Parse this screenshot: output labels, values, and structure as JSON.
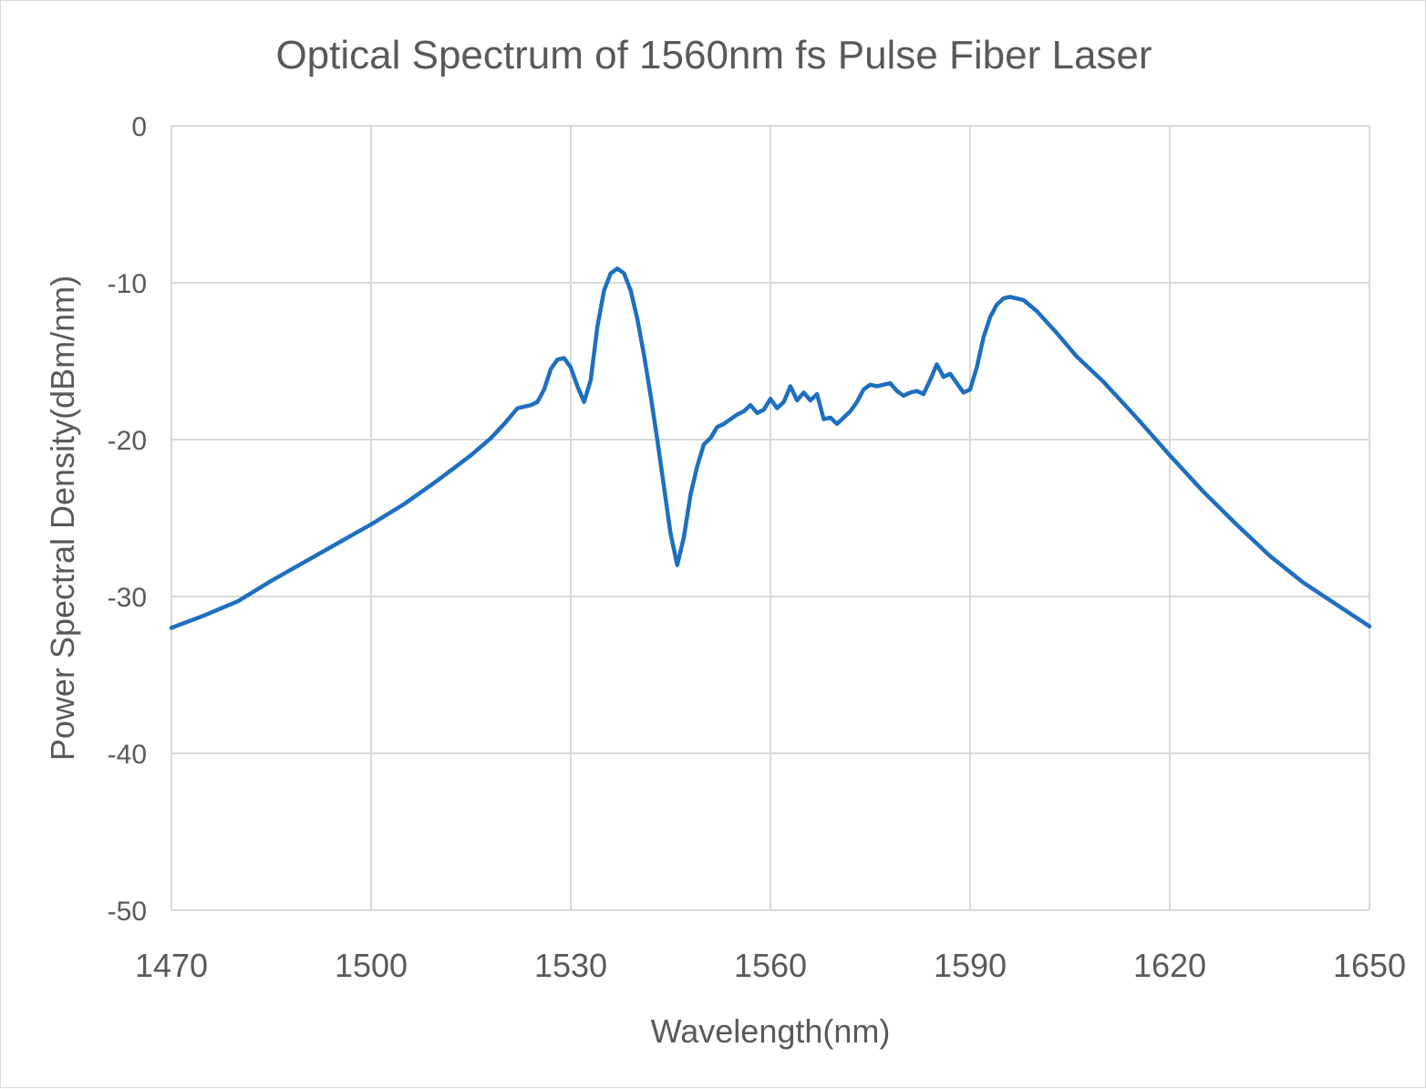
{
  "chart_data": {
    "type": "line",
    "title": "Optical Spectrum of 1560nm fs Pulse Fiber Laser",
    "xlabel": "Wavelength(nm)",
    "ylabel": "Power Spectral Density(dBm/nm)",
    "xlim": [
      1470,
      1650
    ],
    "ylim": [
      -50,
      0
    ],
    "xticks": [
      1470,
      1500,
      1530,
      1560,
      1590,
      1620,
      1650
    ],
    "yticks": [
      0,
      -10,
      -20,
      -30,
      -40,
      -50
    ],
    "grid": true,
    "legend": "none",
    "series": [
      {
        "color": "#1f6fbf",
        "points": [
          [
            1470,
            -32.0
          ],
          [
            1475,
            -31.2
          ],
          [
            1480,
            -30.3
          ],
          [
            1485,
            -29.0
          ],
          [
            1490,
            -27.8
          ],
          [
            1495,
            -26.6
          ],
          [
            1500,
            -25.4
          ],
          [
            1505,
            -24.1
          ],
          [
            1510,
            -22.6
          ],
          [
            1515,
            -21.0
          ],
          [
            1518,
            -19.9
          ],
          [
            1520,
            -19.0
          ],
          [
            1522,
            -18.0
          ],
          [
            1524,
            -17.8
          ],
          [
            1525,
            -17.6
          ],
          [
            1526,
            -16.8
          ],
          [
            1527,
            -15.5
          ],
          [
            1528,
            -14.9
          ],
          [
            1529,
            -14.8
          ],
          [
            1530,
            -15.4
          ],
          [
            1531,
            -16.6
          ],
          [
            1532,
            -17.6
          ],
          [
            1533,
            -16.2
          ],
          [
            1534,
            -12.8
          ],
          [
            1535,
            -10.5
          ],
          [
            1536,
            -9.4
          ],
          [
            1537,
            -9.1
          ],
          [
            1538,
            -9.4
          ],
          [
            1539,
            -10.5
          ],
          [
            1540,
            -12.3
          ],
          [
            1541,
            -14.6
          ],
          [
            1542,
            -17.2
          ],
          [
            1543,
            -20.0
          ],
          [
            1544,
            -23.0
          ],
          [
            1545,
            -26.0
          ],
          [
            1546,
            -28.0
          ],
          [
            1547,
            -26.2
          ],
          [
            1548,
            -23.5
          ],
          [
            1549,
            -21.7
          ],
          [
            1550,
            -20.3
          ],
          [
            1551,
            -19.9
          ],
          [
            1552,
            -19.2
          ],
          [
            1553,
            -19.0
          ],
          [
            1554,
            -18.7
          ],
          [
            1555,
            -18.4
          ],
          [
            1556,
            -18.2
          ],
          [
            1557,
            -17.8
          ],
          [
            1558,
            -18.3
          ],
          [
            1559,
            -18.1
          ],
          [
            1560,
            -17.4
          ],
          [
            1561,
            -18.0
          ],
          [
            1562,
            -17.6
          ],
          [
            1563,
            -16.6
          ],
          [
            1564,
            -17.5
          ],
          [
            1565,
            -17.0
          ],
          [
            1566,
            -17.5
          ],
          [
            1567,
            -17.1
          ],
          [
            1568,
            -18.7
          ],
          [
            1569,
            -18.6
          ],
          [
            1570,
            -19.0
          ],
          [
            1571,
            -18.6
          ],
          [
            1572,
            -18.2
          ],
          [
            1573,
            -17.6
          ],
          [
            1574,
            -16.8
          ],
          [
            1575,
            -16.5
          ],
          [
            1576,
            -16.6
          ],
          [
            1577,
            -16.5
          ],
          [
            1578,
            -16.4
          ],
          [
            1579,
            -16.9
          ],
          [
            1580,
            -17.2
          ],
          [
            1581,
            -17.0
          ],
          [
            1582,
            -16.9
          ],
          [
            1583,
            -17.1
          ],
          [
            1584,
            -16.2
          ],
          [
            1585,
            -15.2
          ],
          [
            1586,
            -16.0
          ],
          [
            1587,
            -15.8
          ],
          [
            1588,
            -16.4
          ],
          [
            1589,
            -17.0
          ],
          [
            1590,
            -16.8
          ],
          [
            1591,
            -15.4
          ],
          [
            1592,
            -13.5
          ],
          [
            1593,
            -12.2
          ],
          [
            1594,
            -11.4
          ],
          [
            1595,
            -11.0
          ],
          [
            1596,
            -10.9
          ],
          [
            1598,
            -11.1
          ],
          [
            1600,
            -11.8
          ],
          [
            1603,
            -13.2
          ],
          [
            1606,
            -14.7
          ],
          [
            1610,
            -16.3
          ],
          [
            1615,
            -18.6
          ],
          [
            1620,
            -21.0
          ],
          [
            1625,
            -23.3
          ],
          [
            1630,
            -25.4
          ],
          [
            1635,
            -27.4
          ],
          [
            1640,
            -29.1
          ],
          [
            1645,
            -30.5
          ],
          [
            1650,
            -31.9
          ]
        ]
      }
    ]
  }
}
